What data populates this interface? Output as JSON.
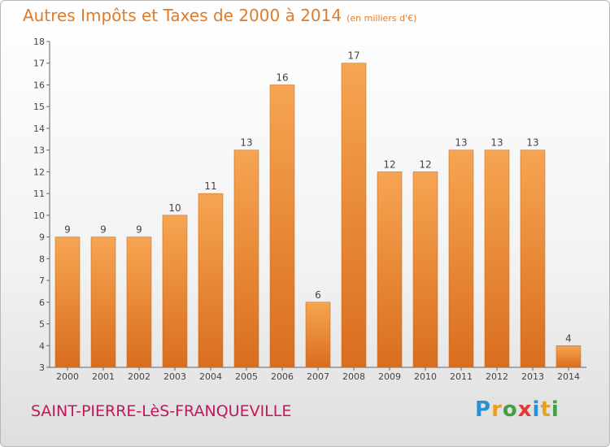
{
  "header": {
    "title": "Autres Impôts et Taxes de 2000 à 2014",
    "unit": "(en milliers d'€)"
  },
  "footer": {
    "commune": "SAINT-PIERRE-LèS-FRANQUEVILLE",
    "logo": "Proxiti"
  },
  "colors": {
    "title": "#e07b2a",
    "bar_light": "#f6a552",
    "bar_dark": "#d96e1e",
    "commune": "#c2185b"
  },
  "chart_data": {
    "type": "bar",
    "title": "Autres Impôts et Taxes de 2000 à 2014",
    "subtitle": "(en milliers d'€)",
    "categories": [
      "2000",
      "2001",
      "2002",
      "2003",
      "2004",
      "2005",
      "2006",
      "2007",
      "2008",
      "2009",
      "2010",
      "2011",
      "2012",
      "2013",
      "2014"
    ],
    "values": [
      9,
      9,
      9,
      10,
      11,
      13,
      16,
      6,
      17,
      12,
      12,
      13,
      13,
      13,
      4
    ],
    "ylim": [
      3,
      18
    ],
    "yticks": [
      3,
      4,
      5,
      6,
      7,
      8,
      9,
      10,
      11,
      12,
      13,
      14,
      15,
      16,
      17,
      18
    ],
    "grid": false,
    "xlabel": "",
    "ylabel": ""
  }
}
